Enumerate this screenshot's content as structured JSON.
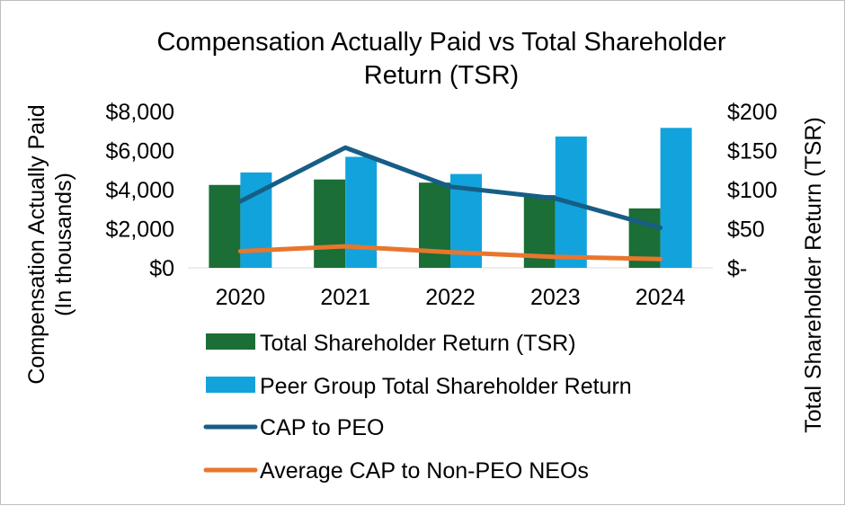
{
  "chart_data": {
    "type": "bar",
    "title_line1": "Compensation Actually Paid vs Total Shareholder",
    "title_line2": "Return (TSR)",
    "categories": [
      "2020",
      "2021",
      "2022",
      "2023",
      "2024"
    ],
    "ylabel_line1": "Compensation Actually Paid",
    "ylabel_line2": "(In thousands)",
    "y2label": "Total Shareholder Return (TSR)",
    "ylim": [
      0,
      8000
    ],
    "y2lim": [
      0,
      200
    ],
    "y_ticks": [
      {
        "value": 0,
        "label": "$0"
      },
      {
        "value": 2000,
        "label": "$2,000"
      },
      {
        "value": 4000,
        "label": "$4,000"
      },
      {
        "value": 6000,
        "label": "$6,000"
      },
      {
        "value": 8000,
        "label": "$8,000"
      }
    ],
    "y2_ticks": [
      {
        "value": 0,
        "label": "$-"
      },
      {
        "value": 50,
        "label": "$50"
      },
      {
        "value": 100,
        "label": "$100"
      },
      {
        "value": 150,
        "label": "$150"
      },
      {
        "value": 200,
        "label": "$200"
      }
    ],
    "series": [
      {
        "name": "Total Shareholder Return (TSR)",
        "kind": "bar",
        "axis": "right",
        "color": "#1a6e36",
        "values": [
          106,
          113,
          109,
          93,
          76
        ]
      },
      {
        "name": "Peer Group Total Shareholder Return",
        "kind": "bar",
        "axis": "right",
        "color": "#12a3dd",
        "values": [
          122,
          142,
          120,
          168,
          179
        ]
      },
      {
        "name": "CAP to PEO",
        "kind": "line",
        "axis": "left",
        "color": "#165e86",
        "values": [
          3400,
          6150,
          4150,
          3550,
          2050
        ]
      },
      {
        "name": "Average CAP to Non-PEO NEOs",
        "kind": "line",
        "axis": "left",
        "color": "#e8762d",
        "values": [
          850,
          1100,
          800,
          560,
          450
        ]
      }
    ],
    "legend_position": "bottom"
  }
}
